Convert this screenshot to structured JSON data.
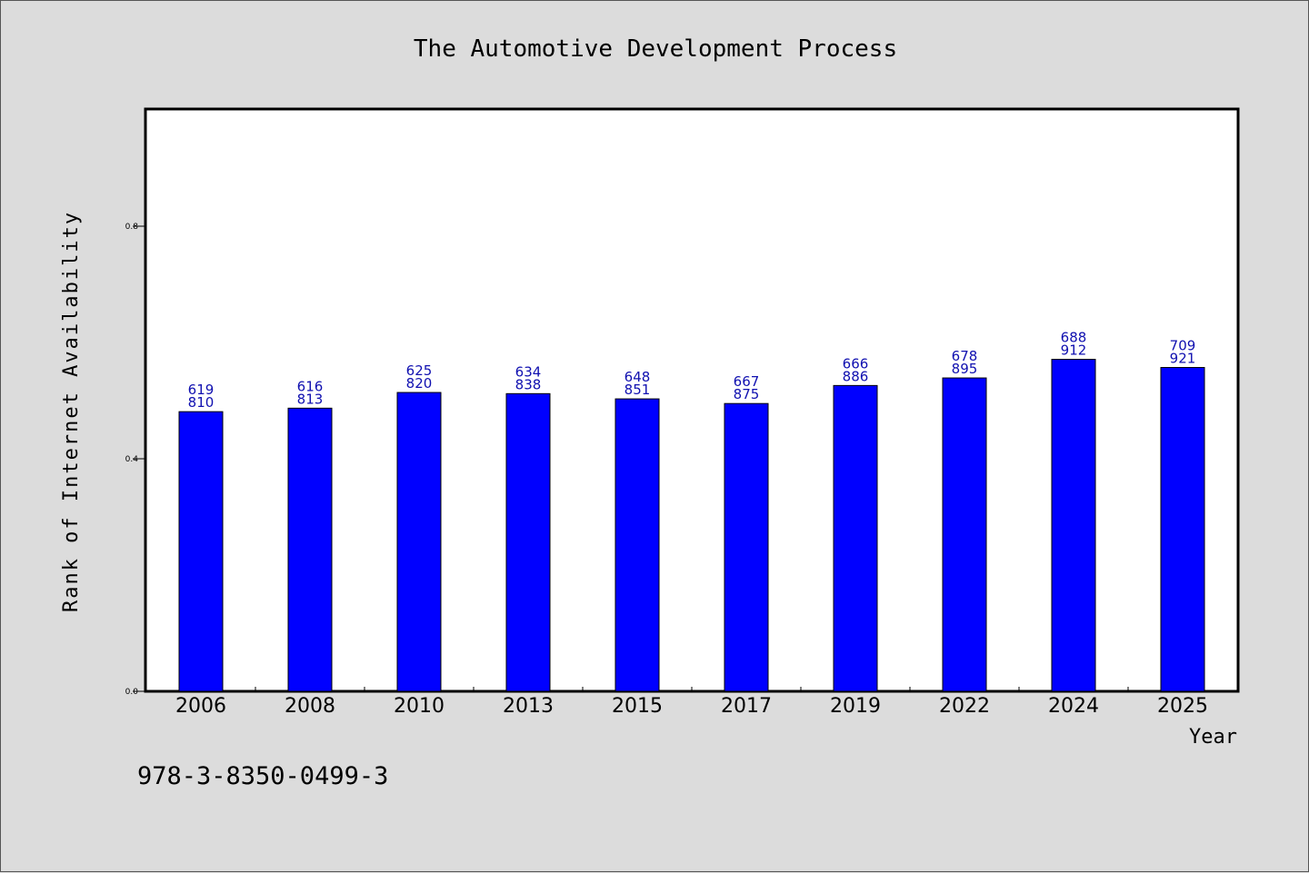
{
  "chart_data": {
    "type": "bar",
    "title": "The Automotive Development Process",
    "xlabel": "Year",
    "ylabel": "Rank of Internet Availability",
    "categories": [
      "2006",
      "2008",
      "2010",
      "2013",
      "2015",
      "2017",
      "2019",
      "2022",
      "2024",
      "2025"
    ],
    "values": [
      0.481,
      0.487,
      0.514,
      0.512,
      0.503,
      0.495,
      0.526,
      0.539,
      0.571,
      0.557
    ],
    "data_labels": [
      [
        "619",
        "810"
      ],
      [
        "616",
        "813"
      ],
      [
        "625",
        "820"
      ],
      [
        "634",
        "838"
      ],
      [
        "648",
        "851"
      ],
      [
        "667",
        "875"
      ],
      [
        "666",
        "886"
      ],
      [
        "678",
        "895"
      ],
      [
        "688",
        "912"
      ],
      [
        "709",
        "921"
      ]
    ],
    "ylim": [
      0,
      1.0
    ],
    "yticks": [
      0.0,
      0.4,
      0.8
    ],
    "ytick_labels": [
      "0.0",
      "0.4",
      "0.8"
    ],
    "grid": false,
    "bar_color": "#0000ff",
    "label_color": "#1010b0"
  },
  "footnote": "978-3-8350-0499-3"
}
